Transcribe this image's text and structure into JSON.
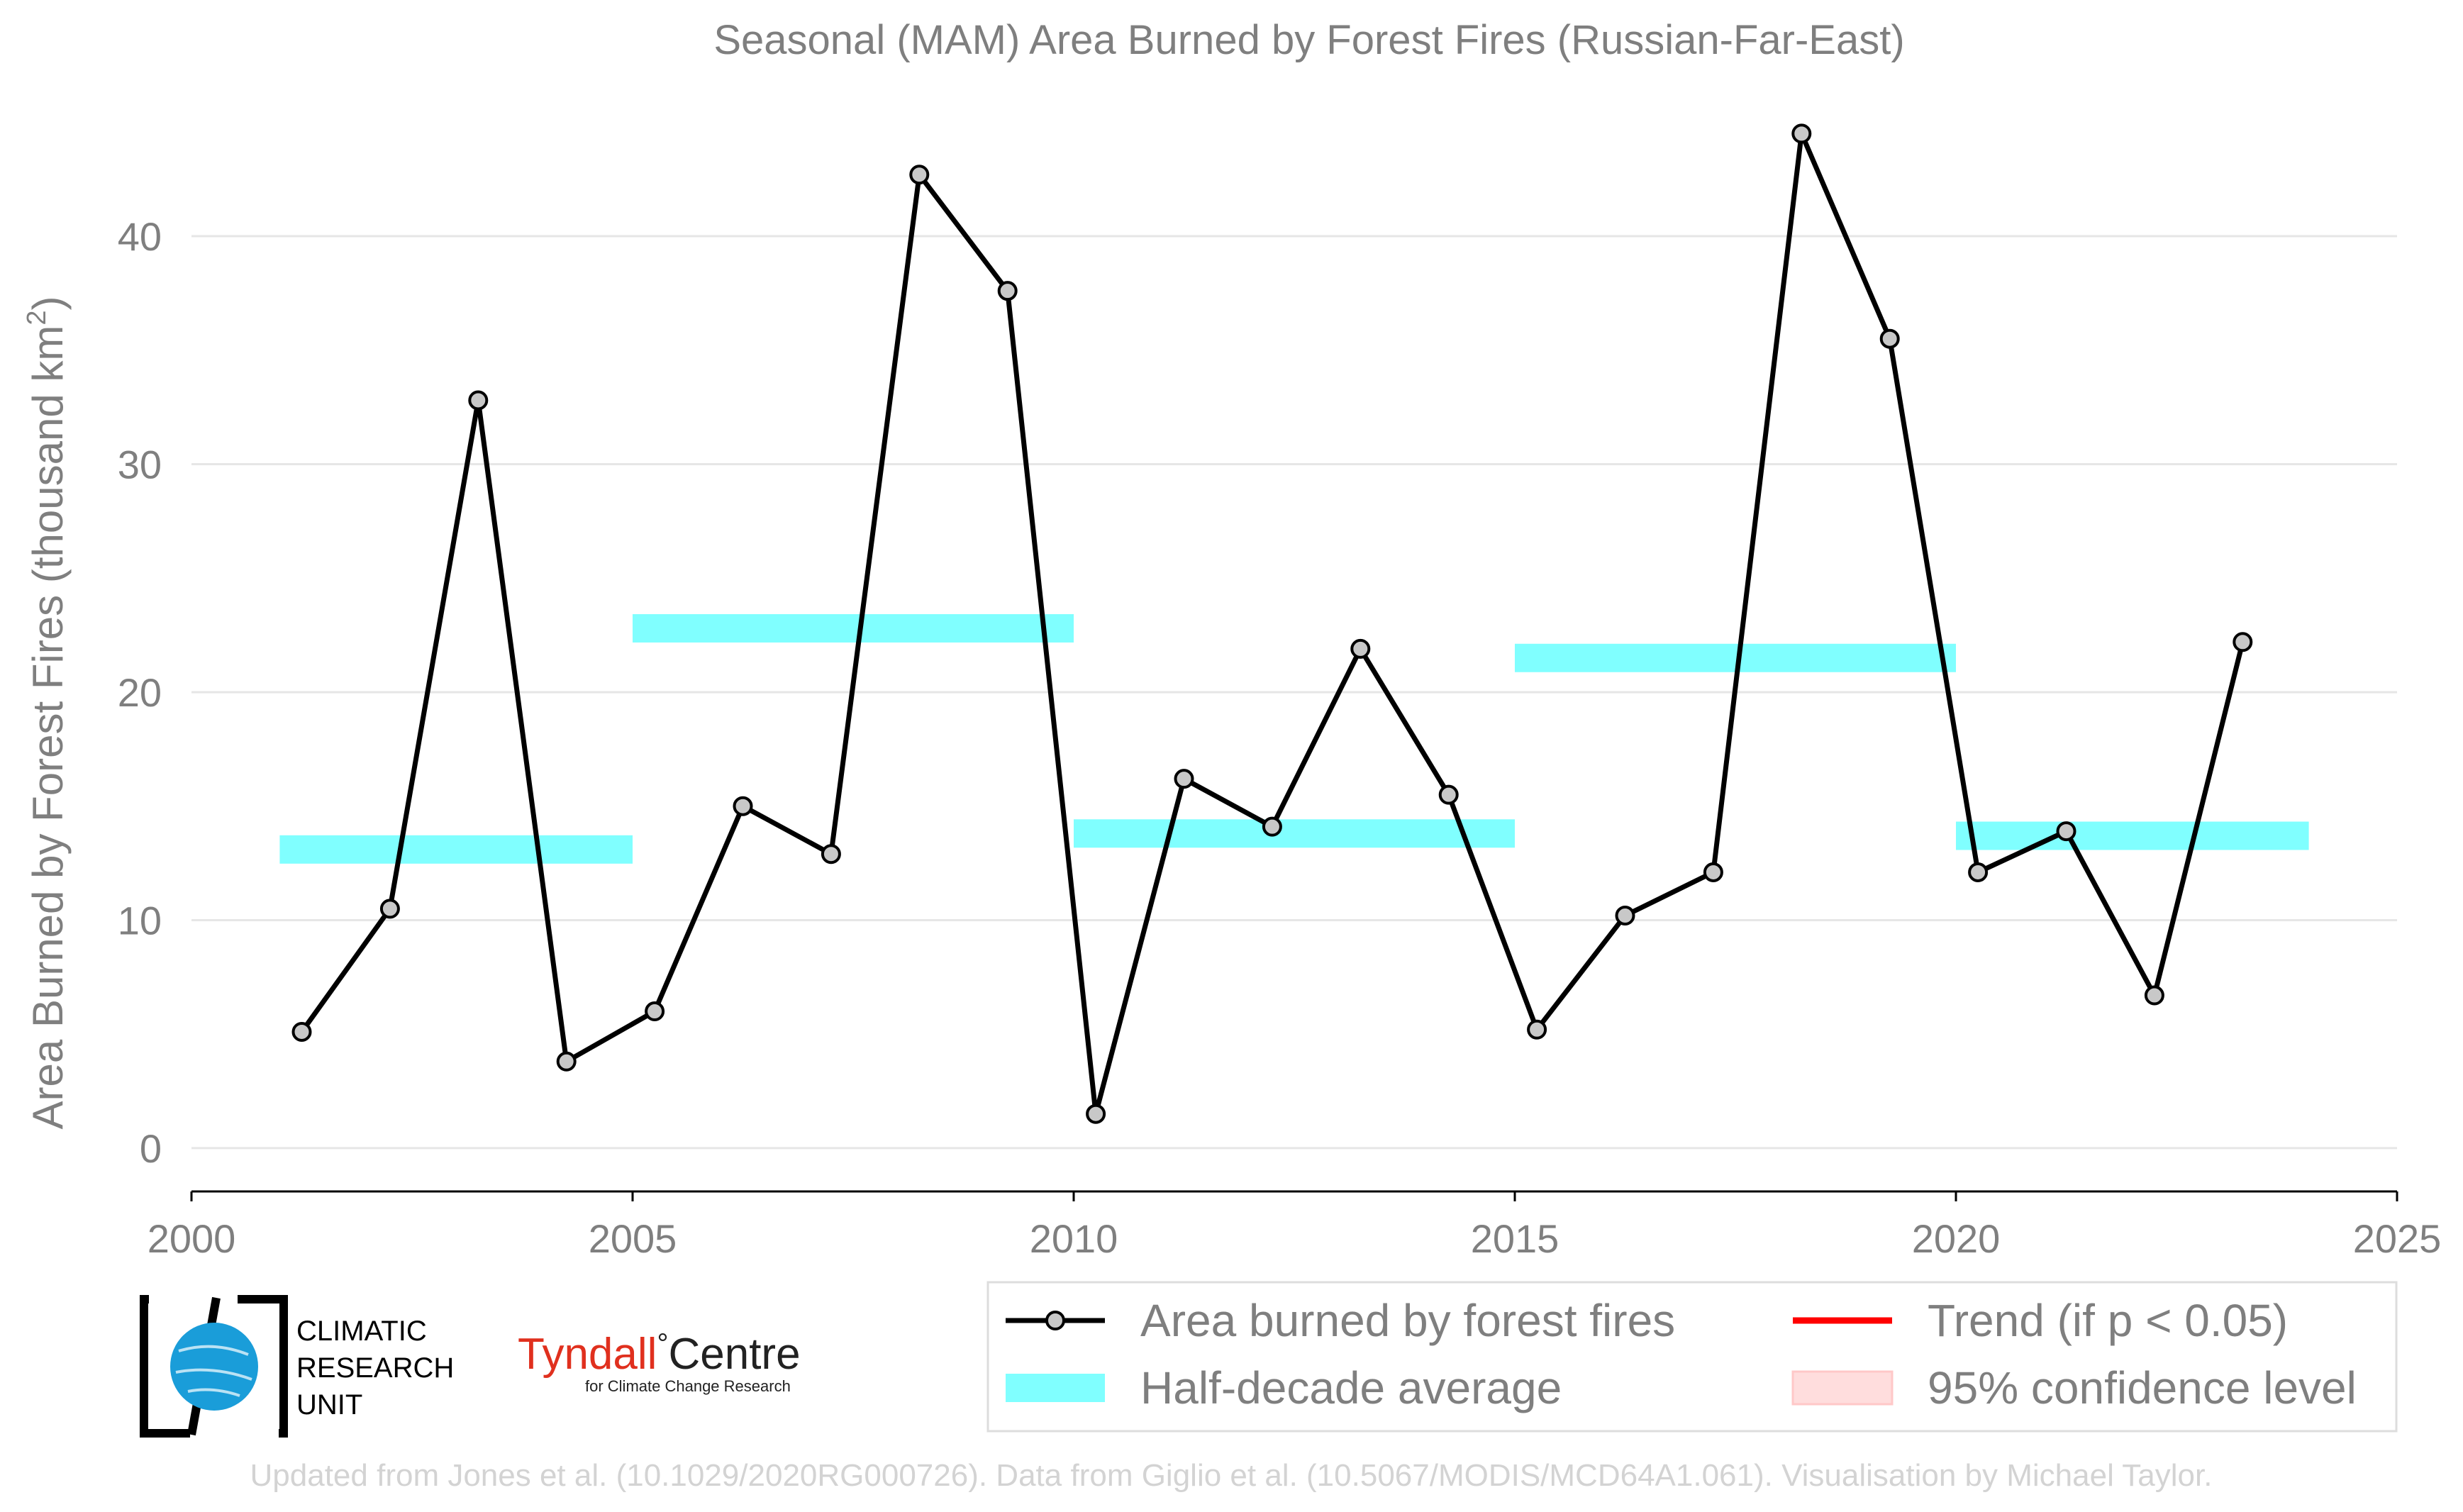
{
  "chart_data": {
    "type": "line",
    "title": "Seasonal (MAM) Area Burned by Forest Fires (Russian-Far-East)",
    "xlabel": "",
    "ylabel_main": "Area Burned by Forest Fires (thousand km",
    "ylabel_sup": "2",
    "ylabel_close": ")",
    "xlim": [
      2000,
      2025
    ],
    "ylim": [
      -1.9,
      47
    ],
    "xticks": [
      2000,
      2005,
      2010,
      2015,
      2020,
      2025
    ],
    "yticks": [
      0,
      10,
      20,
      30,
      40
    ],
    "grid": "horizontal",
    "legend_position": "bottom-right",
    "colors": {
      "line": "#000000",
      "marker_fill": "#c8c8c8",
      "half_decade": "#80ffff",
      "trend": "#ff0000",
      "ci": "#ffdddd"
    },
    "series": [
      {
        "name": "Area burned by forest fires",
        "x": [
          2001.25,
          2002.25,
          2003.25,
          2004.25,
          2005.25,
          2006.25,
          2007.25,
          2008.25,
          2009.25,
          2010.25,
          2011.25,
          2012.25,
          2013.25,
          2014.25,
          2015.25,
          2016.25,
          2017.25,
          2018.25,
          2019.25,
          2020.25,
          2021.25,
          2022.25,
          2023.25
        ],
        "values": [
          5.1,
          10.5,
          32.8,
          3.8,
          6.0,
          15.0,
          12.9,
          42.7,
          37.6,
          1.5,
          16.2,
          14.1,
          21.9,
          15.5,
          5.2,
          10.2,
          12.1,
          44.5,
          35.5,
          12.1,
          13.9,
          6.7,
          22.2
        ]
      }
    ],
    "half_decade_average": {
      "name": "Half-decade average",
      "segments": [
        {
          "x_start": 2001,
          "x_end": 2005,
          "value": 13.1
        },
        {
          "x_start": 2005,
          "x_end": 2010,
          "value": 22.8
        },
        {
          "x_start": 2010,
          "x_end": 2015,
          "value": 13.8
        },
        {
          "x_start": 2015,
          "x_end": 2020,
          "value": 21.5
        },
        {
          "x_start": 2020,
          "x_end": 2024,
          "value": 13.7
        }
      ]
    },
    "legend": {
      "line_label": "Area burned by forest fires",
      "bar_label": "Half-decade average",
      "trend_label": "Trend (if p < 0.05)",
      "ci_label": "95% confidence level"
    }
  },
  "logos": {
    "cru_lines": [
      "CLIMATIC",
      "RESEARCH",
      "UNIT"
    ],
    "tyndall_name": "Tyndall",
    "tyndall_degree": "°",
    "tyndall_centre": "Centre",
    "tyndall_sub": "for Climate Change Research"
  },
  "credit": "Updated from Jones et al. (10.1029/2020RG000726). Data from Giglio et al. (10.5067/MODIS/MCD64A1.061). Visualisation by Michael Taylor."
}
